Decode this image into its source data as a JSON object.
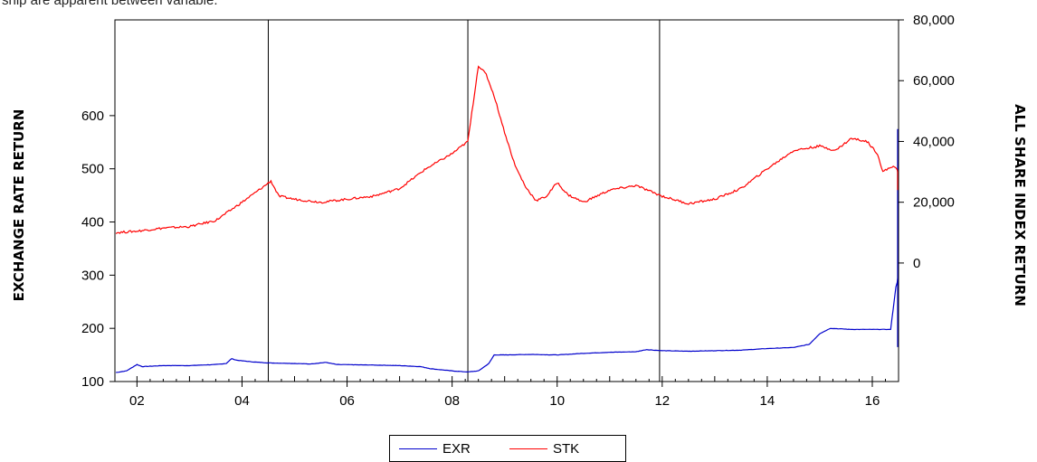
{
  "caption": "ship are apparent between variable.",
  "chart_data": {
    "type": "line",
    "x_unit": "year",
    "x_range": [
      2001.58,
      2016.5
    ],
    "x_ticks": [
      2002,
      2004,
      2006,
      2008,
      2010,
      2012,
      2014,
      2016
    ],
    "x_tick_labels": [
      "02",
      "04",
      "06",
      "08",
      "10",
      "12",
      "14",
      "16"
    ],
    "vertical_lines": [
      2004.5,
      2008.3,
      2011.95
    ],
    "left_axis": {
      "label": "EXCHANGE RATE RETURN",
      "ticks": [
        100,
        200,
        300,
        400,
        500,
        600
      ],
      "tick_labels": [
        "100",
        "200",
        "300",
        "400",
        "500",
        "600"
      ],
      "range": [
        100,
        780
      ]
    },
    "right_axis": {
      "label": "ALL SHARE INDEX RETURN",
      "ticks": [
        0,
        20000,
        40000,
        60000,
        80000
      ],
      "tick_labels": [
        "0",
        "20,000",
        "40,000",
        "60,000",
        "80,000"
      ],
      "range": [
        -39000,
        80000
      ]
    },
    "series": [
      {
        "name": "EXR",
        "axis": "left",
        "color": "#0000cc",
        "points": [
          [
            2001.6,
            117
          ],
          [
            2001.8,
            120
          ],
          [
            2002.0,
            132
          ],
          [
            2002.1,
            128
          ],
          [
            2002.5,
            130
          ],
          [
            2003.0,
            130
          ],
          [
            2003.5,
            132
          ],
          [
            2003.7,
            134
          ],
          [
            2003.8,
            143
          ],
          [
            2003.9,
            140
          ],
          [
            2004.2,
            137
          ],
          [
            2004.5,
            135
          ],
          [
            2005.0,
            134
          ],
          [
            2005.3,
            133
          ],
          [
            2005.6,
            136
          ],
          [
            2005.8,
            132
          ],
          [
            2006.5,
            131
          ],
          [
            2007.0,
            130
          ],
          [
            2007.4,
            128
          ],
          [
            2007.6,
            124
          ],
          [
            2008.0,
            120
          ],
          [
            2008.3,
            118
          ],
          [
            2008.5,
            120
          ],
          [
            2008.7,
            134
          ],
          [
            2008.8,
            150
          ],
          [
            2009.0,
            150
          ],
          [
            2009.5,
            151
          ],
          [
            2010.0,
            150
          ],
          [
            2010.5,
            153
          ],
          [
            2011.0,
            155
          ],
          [
            2011.5,
            156
          ],
          [
            2011.7,
            160
          ],
          [
            2012.0,
            158
          ],
          [
            2012.5,
            157
          ],
          [
            2013.0,
            158
          ],
          [
            2013.5,
            159
          ],
          [
            2014.0,
            162
          ],
          [
            2014.5,
            164
          ],
          [
            2014.8,
            170
          ],
          [
            2015.0,
            190
          ],
          [
            2015.2,
            200
          ],
          [
            2015.6,
            198
          ],
          [
            2016.0,
            198
          ],
          [
            2016.3,
            198
          ],
          [
            2016.35,
            198
          ],
          [
            2016.45,
            278
          ],
          [
            2016.55,
            312
          ],
          [
            2016.62,
            318
          ],
          [
            2016.66,
            165
          ],
          [
            2016.7,
            575
          ],
          [
            2016.74,
            330
          ],
          [
            2016.8,
            310
          ],
          [
            2016.9,
            312
          ],
          [
            2017.1,
            312
          ]
        ]
      },
      {
        "name": "STK",
        "axis": "right",
        "color": "#ff0000",
        "points": [
          [
            2001.6,
            10000
          ],
          [
            2002.0,
            10500
          ],
          [
            2002.5,
            11500
          ],
          [
            2003.0,
            12000
          ],
          [
            2003.5,
            14000
          ],
          [
            2004.0,
            20000
          ],
          [
            2004.4,
            25000
          ],
          [
            2004.55,
            27000
          ],
          [
            2004.7,
            22000
          ],
          [
            2005.0,
            21000
          ],
          [
            2005.5,
            20000
          ],
          [
            2006.0,
            21000
          ],
          [
            2006.5,
            22000
          ],
          [
            2007.0,
            24500
          ],
          [
            2007.5,
            31000
          ],
          [
            2007.8,
            34000
          ],
          [
            2008.0,
            36000
          ],
          [
            2008.3,
            40000
          ],
          [
            2008.5,
            65000
          ],
          [
            2008.65,
            62000
          ],
          [
            2008.8,
            55000
          ],
          [
            2009.0,
            43000
          ],
          [
            2009.2,
            32000
          ],
          [
            2009.4,
            25000
          ],
          [
            2009.6,
            20500
          ],
          [
            2009.8,
            22000
          ],
          [
            2010.0,
            26500
          ],
          [
            2010.2,
            22500
          ],
          [
            2010.5,
            20000
          ],
          [
            2011.0,
            24000
          ],
          [
            2011.5,
            25500
          ],
          [
            2012.0,
            22000
          ],
          [
            2012.5,
            19500
          ],
          [
            2013.0,
            21000
          ],
          [
            2013.5,
            24500
          ],
          [
            2014.0,
            31000
          ],
          [
            2014.5,
            37000
          ],
          [
            2015.0,
            38500
          ],
          [
            2015.3,
            37000
          ],
          [
            2015.6,
            41000
          ],
          [
            2015.9,
            40000
          ],
          [
            2016.1,
            36000
          ],
          [
            2016.2,
            30000
          ],
          [
            2016.4,
            32000
          ],
          [
            2016.6,
            28000
          ],
          [
            2016.8,
            25500
          ],
          [
            2017.0,
            24500
          ],
          [
            2017.1,
            24000
          ]
        ]
      }
    ],
    "legend": {
      "placement": "bottom-center",
      "items": [
        "EXR",
        "STK"
      ]
    },
    "grid": false
  }
}
